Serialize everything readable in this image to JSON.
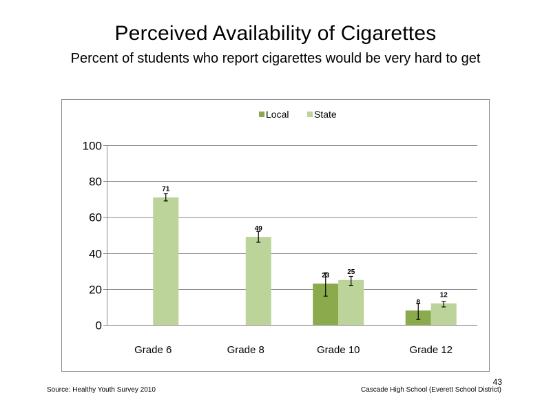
{
  "slide": {
    "title": "Perceived  Availability  of Cigarettes",
    "subtitle": "Percent  of students  who report cigarettes would  be very hard to get",
    "source": "Source: Healthy  Youth Survey 2010",
    "school": "Cascade High  School  (Everett School District)",
    "page_number": "43"
  },
  "chart_data": {
    "type": "bar",
    "title": "",
    "xlabel": "",
    "ylabel": "",
    "categories": [
      "Grade 6",
      "Grade 8",
      "Grade 10",
      "Grade 12"
    ],
    "ylim": [
      0,
      100
    ],
    "yticks": [
      0,
      20,
      40,
      60,
      80,
      100
    ],
    "grid": true,
    "legend_position": "top-center",
    "series": [
      {
        "name": "Local",
        "color": "#8aaa4c",
        "values": [
          null,
          null,
          23,
          8
        ],
        "labels": [
          "",
          "",
          "23",
          "8"
        ],
        "error_low": [
          null,
          null,
          16,
          3
        ],
        "error_high": [
          null,
          null,
          29,
          12
        ]
      },
      {
        "name": "State",
        "color": "#bcd49a",
        "values": [
          71,
          49,
          25,
          12
        ],
        "labels": [
          "71",
          "49",
          "25",
          "12"
        ],
        "error_low": [
          69,
          46,
          22,
          10
        ],
        "error_high": [
          73,
          52,
          27,
          13
        ]
      }
    ]
  }
}
